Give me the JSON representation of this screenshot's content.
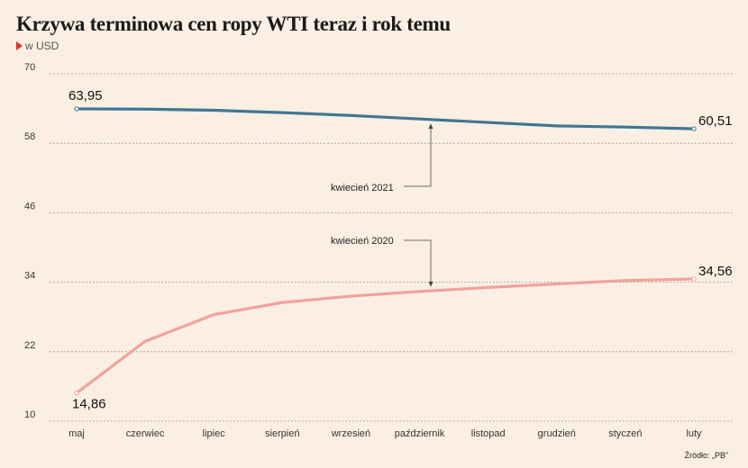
{
  "header": {
    "title": "Krzywa terminowa cen ropy WTI teraz i rok temu",
    "subtitle": "w USD"
  },
  "source": "Źródło: „PB”",
  "colors": {
    "background": "#fbefe3",
    "series_2021": "#3f7694",
    "series_2020": "#f3a29b",
    "grid": "#9a9a9a",
    "accent": "#e0312b"
  },
  "chart_data": {
    "type": "line",
    "title": "",
    "xlabel": "",
    "ylabel": "",
    "ylim": [
      10,
      70
    ],
    "yticks": [
      10,
      22,
      34,
      46,
      58,
      70
    ],
    "grid": "horizontal dashed",
    "categories": [
      "maj",
      "czerwiec",
      "lipiec",
      "sierpień",
      "wrzesień",
      "październik",
      "listopad",
      "grudzień",
      "styczeń",
      "luty"
    ],
    "series": [
      {
        "name": "kwiecień 2021",
        "values": [
          63.95,
          63.9,
          63.7,
          63.3,
          62.8,
          62.2,
          61.6,
          61.0,
          60.8,
          60.51
        ],
        "start_label": "63,95",
        "end_label": "60,51"
      },
      {
        "name": "kwiecień 2020",
        "values": [
          14.86,
          23.8,
          28.4,
          30.5,
          31.6,
          32.4,
          33.1,
          33.7,
          34.3,
          34.56
        ],
        "start_label": "14,86",
        "end_label": "34,56"
      }
    ],
    "annotations": [
      {
        "text": "kwiecień 2021",
        "series": 0,
        "category_index": 5
      },
      {
        "text": "kwiecień 2020",
        "series": 1,
        "category_index": 5
      }
    ]
  }
}
